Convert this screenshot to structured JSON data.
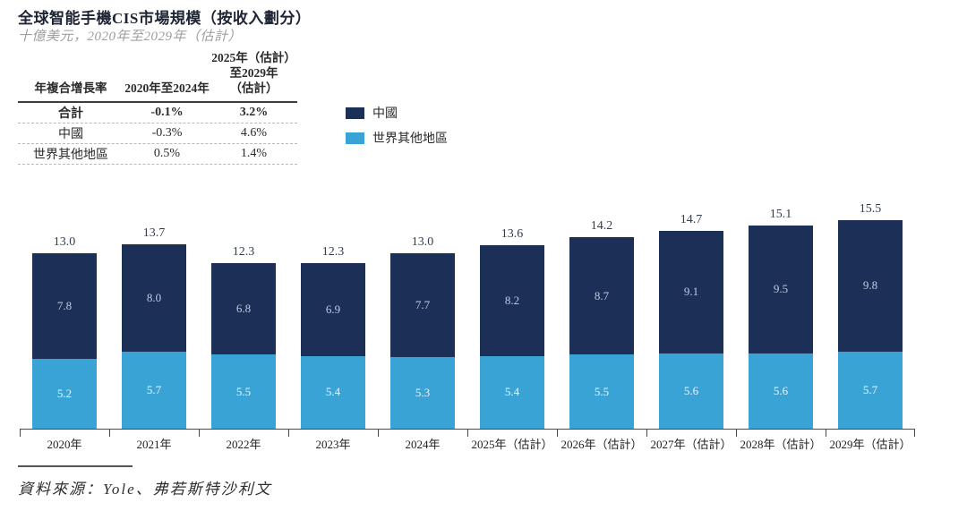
{
  "header": {
    "title": "全球智能手機CIS市場規模（按收入劃分）",
    "subtitle": "十億美元，2020年至2029年（估計）"
  },
  "cagr_table": {
    "columns": [
      "年複合增長率",
      "2020年至2024年",
      "2025年（估計）\n至2029年\n（估計）"
    ],
    "rows": [
      {
        "label": "合計",
        "v1": "-0.1%",
        "v2": "3.2%",
        "bold": true
      },
      {
        "label": "中國",
        "v1": "-0.3%",
        "v2": "4.6%",
        "bold": false
      },
      {
        "label": "世界其他地區",
        "v1": "0.5%",
        "v2": "1.4%",
        "bold": false
      }
    ]
  },
  "chart_data": {
    "type": "bar",
    "stacked": true,
    "title": "全球智能手機CIS市場規模（按收入劃分）",
    "subtitle": "十億美元，2020年至2029年（估計）",
    "unit": "十億美元",
    "categories": [
      "2020年",
      "2021年",
      "2022年",
      "2023年",
      "2024年",
      "2025年（估計）",
      "2026年（估計）",
      "2027年（估計）",
      "2028年（估計）",
      "2029年（估計）"
    ],
    "series": [
      {
        "name": "中國",
        "color": "#1b2f57",
        "values": [
          7.8,
          8.0,
          6.8,
          6.9,
          7.7,
          8.2,
          8.7,
          9.1,
          9.5,
          9.8
        ],
        "labels": [
          "7.8",
          "8.0",
          "6.8",
          "6.9",
          "7.7",
          "8.2",
          "8.7",
          "9.1",
          "9.5",
          "9.8"
        ]
      },
      {
        "name": "世界其他地區",
        "color": "#3aa3d5",
        "values": [
          5.2,
          5.7,
          5.5,
          5.4,
          5.3,
          5.4,
          5.5,
          5.6,
          5.6,
          5.7
        ],
        "labels": [
          "5.2",
          "5.7",
          "5.5",
          "5.4",
          "5.3",
          "5.4",
          "5.5",
          "5.6",
          "5.6",
          "5.7"
        ]
      }
    ],
    "totals": [
      13.0,
      13.7,
      12.3,
      12.3,
      13.0,
      13.6,
      14.2,
      14.7,
      15.1,
      15.5
    ],
    "totals_labels": [
      "13.0",
      "13.7",
      "12.3",
      "12.3",
      "13.0",
      "13.6",
      "14.2",
      "14.7",
      "15.1",
      "15.5"
    ],
    "ylim": [
      0,
      15.5
    ],
    "grid": false,
    "legend_position": "upper-left-area"
  },
  "source": {
    "text": "資料來源：Yole、弗若斯特沙利文"
  }
}
